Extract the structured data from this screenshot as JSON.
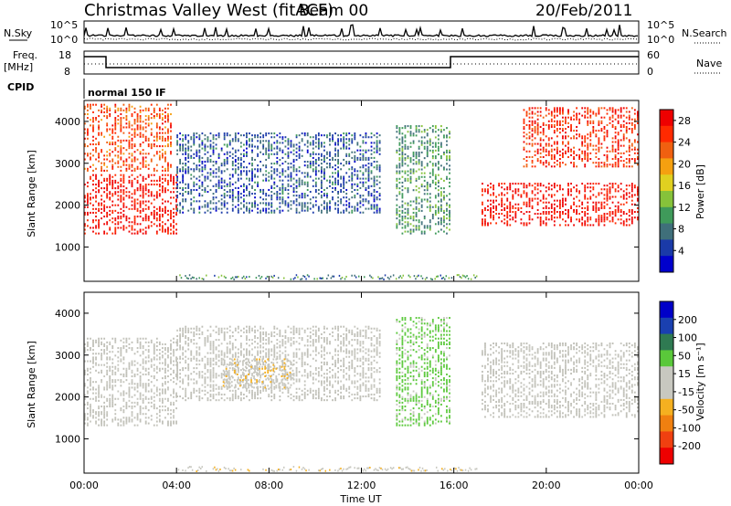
{
  "header": {
    "title": "Christmas Valley West (fitACF)",
    "beam": "Beam 00",
    "date": "20/Feb/2011"
  },
  "panels": {
    "nsky": {
      "left_label": "N.Sky",
      "right_label": "N.Search",
      "ticks": [
        "10^5",
        "10^0"
      ]
    },
    "freq": {
      "left_label_1": "Freq.",
      "left_label_2": "[MHz]",
      "left_ticks": [
        "18",
        "8"
      ],
      "right_label": "Nave",
      "right_ticks": [
        "60",
        "0"
      ]
    },
    "cpid": {
      "label": "CPID",
      "value": "normal 150 IF"
    }
  },
  "colors": {
    "power_scale": [
      "#0000cc",
      "#1a3aa8",
      "#3f6f7a",
      "#3f9a5a",
      "#86c23a",
      "#e0d020",
      "#f5a010",
      "#f06010",
      "#ff2a00",
      "#ee0000"
    ],
    "velocity_scale": [
      "#0000c8",
      "#1a40b0",
      "#2f7a52",
      "#5ac83a",
      "#c8c8c0",
      "#c8c8c0",
      "#f5b020",
      "#f08010",
      "#f04010",
      "#ee0000"
    ],
    "ground_scatter": "#c0c0b8"
  },
  "chart_data": [
    {
      "type": "heatmap",
      "title": "Christmas Valley West (fitACF) Beam 00 20/Feb/2011",
      "xlabel": "",
      "ylabel": "Slant Range [km]",
      "x_ticks": [
        "00:00",
        "04:00",
        "08:00",
        "12:00",
        "16:00",
        "20:00",
        "00:00"
      ],
      "xlim": [
        0,
        24
      ],
      "y_ticks": [
        "1000",
        "2000",
        "3000",
        "4000"
      ],
      "ylim": [
        180,
        4500
      ],
      "colorbar": {
        "label": "Power [dB]",
        "ticks": [
          "4",
          "8",
          "12",
          "16",
          "20",
          "24",
          "28"
        ],
        "range": [
          0,
          30
        ]
      },
      "bands": [
        {
          "t0": 0.0,
          "t1": 3.8,
          "r0": 2800,
          "r1": 4400,
          "value": 24
        },
        {
          "t0": 0.0,
          "t1": 4.0,
          "r0": 1300,
          "r1": 2700,
          "value": 28
        },
        {
          "t0": 4.0,
          "t1": 12.8,
          "r0": 1800,
          "r1": 3700,
          "value": 6
        },
        {
          "t0": 13.5,
          "t1": 15.8,
          "r0": 1300,
          "r1": 3900,
          "value": 10
        },
        {
          "t0": 17.2,
          "t1": 24.0,
          "r0": 1500,
          "r1": 2500,
          "value": 28
        },
        {
          "t0": 19.0,
          "t1": 24.0,
          "r0": 2900,
          "r1": 4300,
          "value": 26
        }
      ]
    },
    {
      "type": "heatmap",
      "title": "",
      "xlabel": "Time UT",
      "ylabel": "Slant Range [km]",
      "x_ticks": [
        "00:00",
        "04:00",
        "08:00",
        "12:00",
        "16:00",
        "20:00",
        "00:00"
      ],
      "xlim": [
        0,
        24
      ],
      "y_ticks": [
        "1000",
        "2000",
        "3000",
        "4000"
      ],
      "ylim": [
        180,
        4500
      ],
      "colorbar": {
        "label": "Velocity [m s⁻¹]",
        "ticks": [
          "200",
          "100",
          "50",
          "15",
          "-15",
          "-50",
          "-100",
          "-200"
        ],
        "range": [
          -250,
          250
        ]
      },
      "bands": [
        {
          "t0": 0.0,
          "t1": 4.0,
          "r0": 1300,
          "r1": 3400,
          "value": 0
        },
        {
          "t0": 4.0,
          "t1": 12.8,
          "r0": 1900,
          "r1": 3700,
          "value": 0
        },
        {
          "t0": 6.0,
          "t1": 9.0,
          "r0": 2200,
          "r1": 2900,
          "value": -40
        },
        {
          "t0": 13.5,
          "t1": 15.8,
          "r0": 1300,
          "r1": 3900,
          "value": 60
        },
        {
          "t0": 17.2,
          "t1": 24.0,
          "r0": 1500,
          "r1": 3300,
          "value": 0
        }
      ]
    }
  ]
}
